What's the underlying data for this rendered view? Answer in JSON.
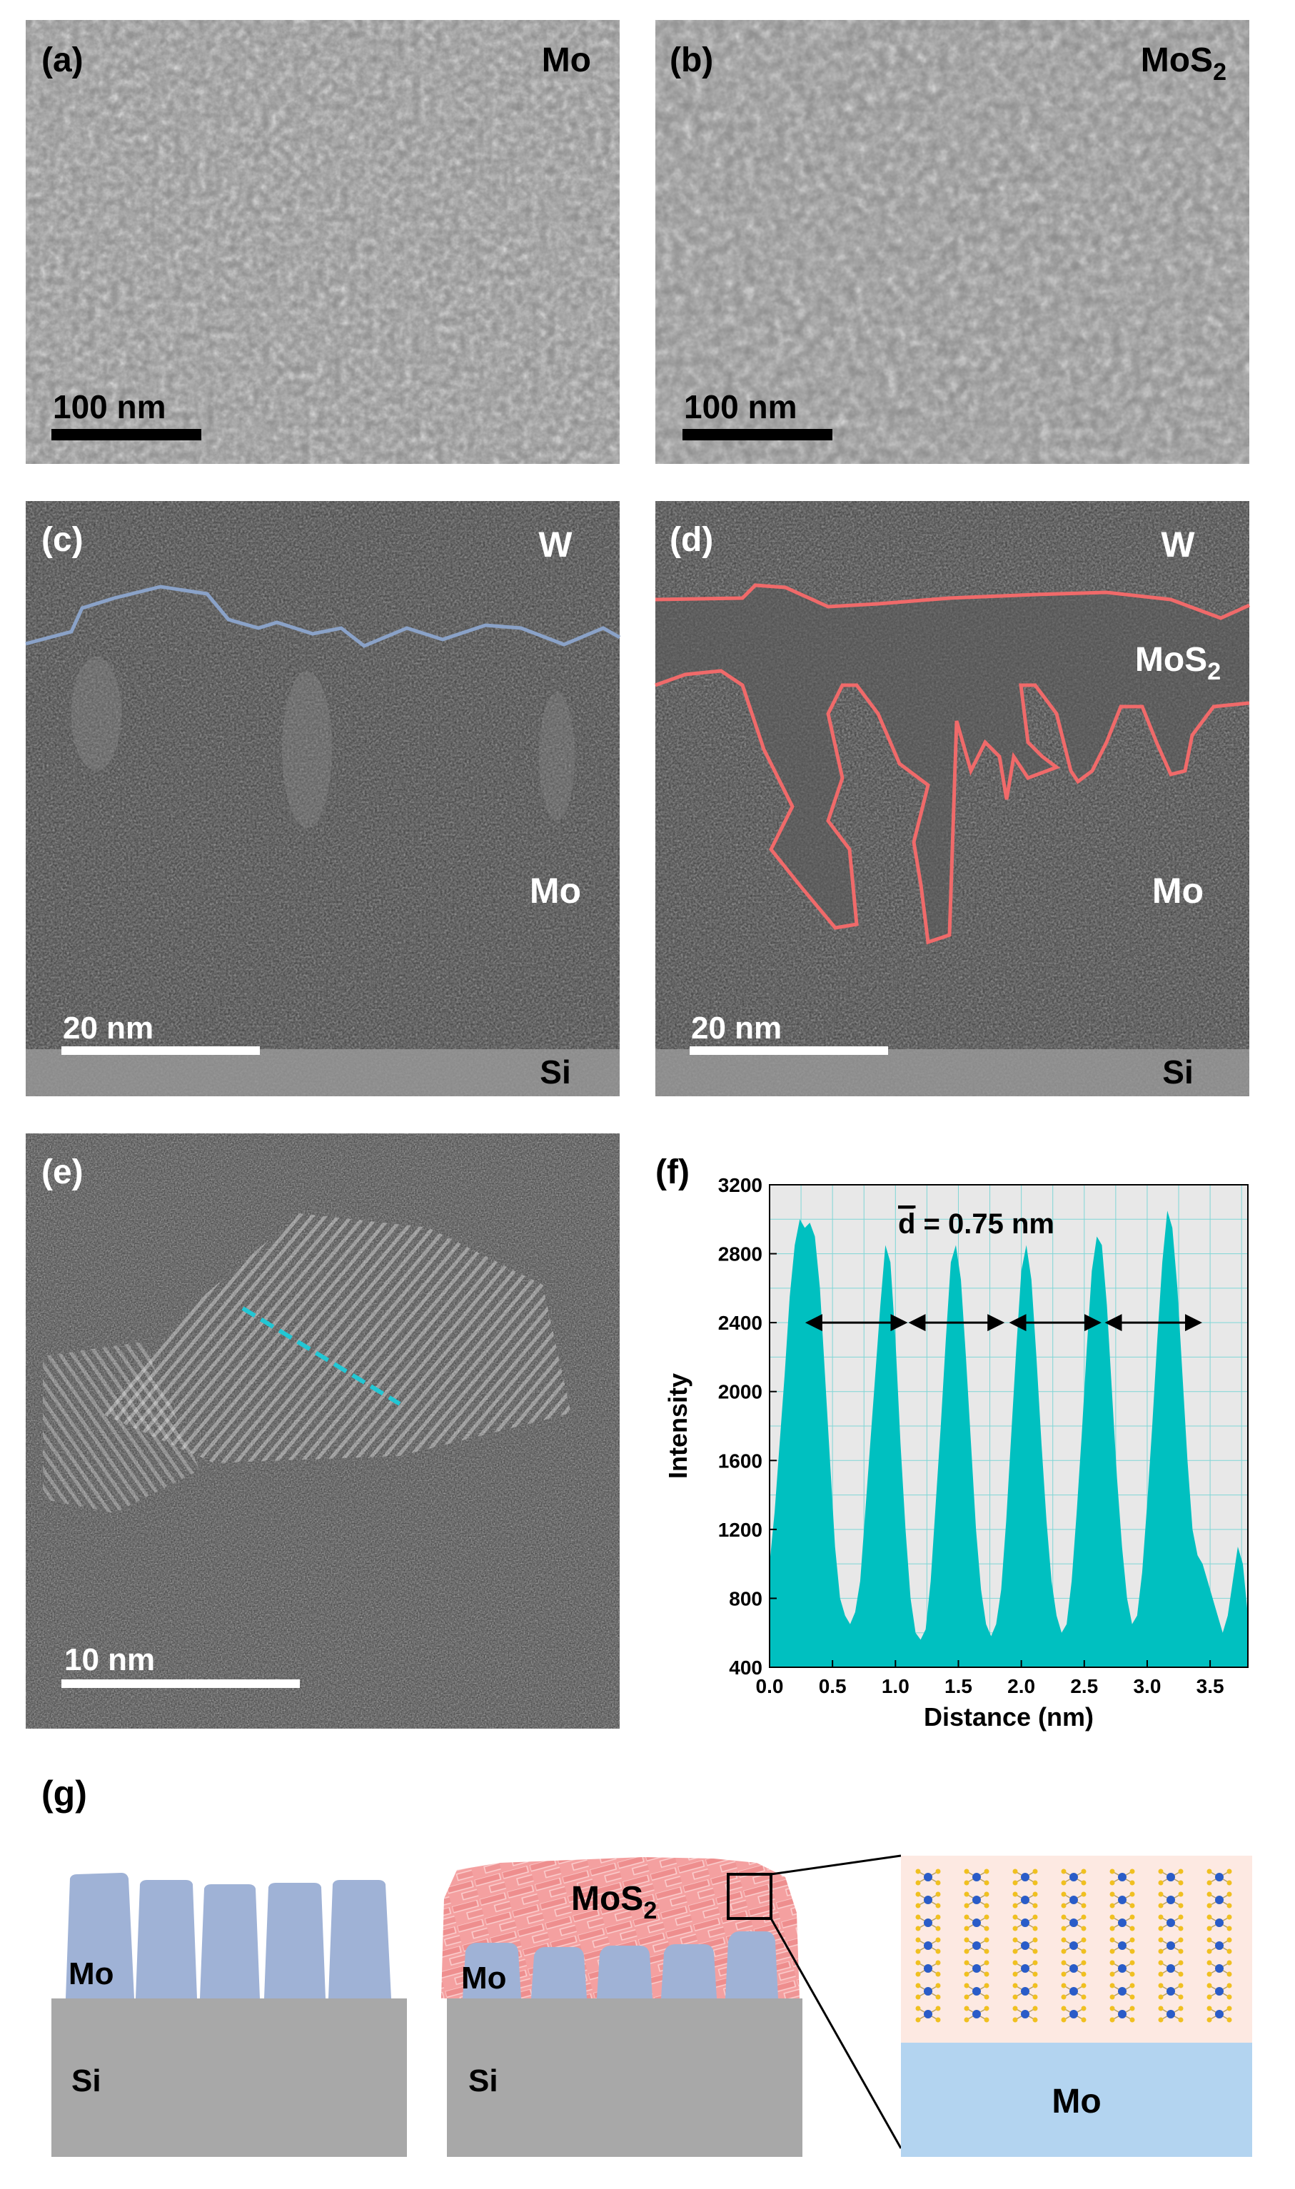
{
  "panels": {
    "a": {
      "label": "(a)",
      "material": "Mo",
      "scalebar": "100 nm"
    },
    "b": {
      "label": "(b)",
      "material": "MoS",
      "material_sub": "2",
      "scalebar": "100 nm"
    },
    "c": {
      "label": "(c)",
      "top": "W",
      "middle": "Mo",
      "bottom": "Si",
      "scalebar": "20 nm"
    },
    "d": {
      "label": "(d)",
      "top": "W",
      "layer": "MoS",
      "layer_sub": "2",
      "middle": "Mo",
      "bottom": "Si",
      "scalebar": "20 nm"
    },
    "e": {
      "label": "(e)",
      "scalebar": "10 nm"
    },
    "f": {
      "label": "(f)",
      "annotation_prefix": "d",
      "annotation": " = 0.75 nm"
    },
    "g": {
      "label": "(g)",
      "left": {
        "pillar": "Mo",
        "substrate": "Si"
      },
      "middle": {
        "film": "MoS",
        "film_sub": "2",
        "pillar": "Mo",
        "substrate": "Si"
      },
      "right": {
        "base": "Mo"
      }
    }
  },
  "colors": {
    "interface_c": "#8aa2c8",
    "interface_d": "#f06a6a",
    "profile_line": "#22c7d4",
    "chart_fill": "#00c0c0",
    "mo_pillar": "#9fb2d6",
    "mos2": "#f4a0a0",
    "si": "#a8a8a8",
    "mo_base": "#b3d4f0"
  },
  "chart_data": {
    "type": "area",
    "xlabel": "Distance (nm)",
    "ylabel": "Intensity",
    "xlim": [
      0,
      3.8
    ],
    "ylim": [
      400,
      3200
    ],
    "xticks": [
      "0.0",
      "0.5",
      "1.0",
      "1.5",
      "2.0",
      "2.5",
      "3.0",
      "3.5"
    ],
    "yticks": [
      "400",
      "800",
      "1200",
      "1600",
      "2000",
      "2400",
      "2800",
      "3200"
    ],
    "grid": true,
    "annotation": "d̄ = 0.75 nm",
    "spacing_markers": [
      [
        0.3,
        1.08
      ],
      [
        1.12,
        1.85
      ],
      [
        1.92,
        2.62
      ],
      [
        2.68,
        3.42
      ]
    ],
    "marker_y": 2400,
    "x": [
      0.0,
      0.04,
      0.08,
      0.12,
      0.16,
      0.2,
      0.24,
      0.28,
      0.32,
      0.36,
      0.4,
      0.44,
      0.48,
      0.52,
      0.56,
      0.6,
      0.64,
      0.68,
      0.72,
      0.76,
      0.8,
      0.84,
      0.88,
      0.92,
      0.96,
      1.0,
      1.04,
      1.08,
      1.12,
      1.16,
      1.2,
      1.24,
      1.28,
      1.32,
      1.36,
      1.4,
      1.44,
      1.48,
      1.52,
      1.56,
      1.6,
      1.64,
      1.68,
      1.72,
      1.76,
      1.8,
      1.84,
      1.88,
      1.92,
      1.96,
      2.0,
      2.04,
      2.08,
      2.12,
      2.16,
      2.2,
      2.24,
      2.28,
      2.32,
      2.36,
      2.4,
      2.44,
      2.48,
      2.52,
      2.56,
      2.6,
      2.64,
      2.68,
      2.72,
      2.76,
      2.8,
      2.84,
      2.88,
      2.92,
      2.96,
      3.0,
      3.04,
      3.08,
      3.12,
      3.16,
      3.2,
      3.24,
      3.28,
      3.32,
      3.36,
      3.4,
      3.44,
      3.48,
      3.52,
      3.56,
      3.6,
      3.64,
      3.68,
      3.72,
      3.76,
      3.8
    ],
    "values": [
      1000,
      1300,
      1700,
      2100,
      2550,
      2850,
      3000,
      2950,
      2980,
      2900,
      2600,
      2100,
      1600,
      1100,
      800,
      700,
      650,
      720,
      900,
      1300,
      1700,
      2100,
      2500,
      2850,
      2750,
      2300,
      1700,
      1200,
      800,
      600,
      560,
      620,
      900,
      1350,
      1800,
      2300,
      2750,
      2850,
      2650,
      2200,
      1700,
      1200,
      850,
      650,
      580,
      650,
      850,
      1250,
      1750,
      2250,
      2700,
      2850,
      2650,
      2200,
      1700,
      1250,
      900,
      700,
      600,
      650,
      900,
      1300,
      1750,
      2250,
      2700,
      2900,
      2850,
      2500,
      2000,
      1500,
      1100,
      800,
      650,
      700,
      950,
      1350,
      1800,
      2300,
      2750,
      3050,
      2950,
      2600,
      2100,
      1600,
      1200,
      1050,
      1000,
      900,
      800,
      700,
      600,
      700,
      900,
      1100,
      1000,
      700
    ]
  }
}
